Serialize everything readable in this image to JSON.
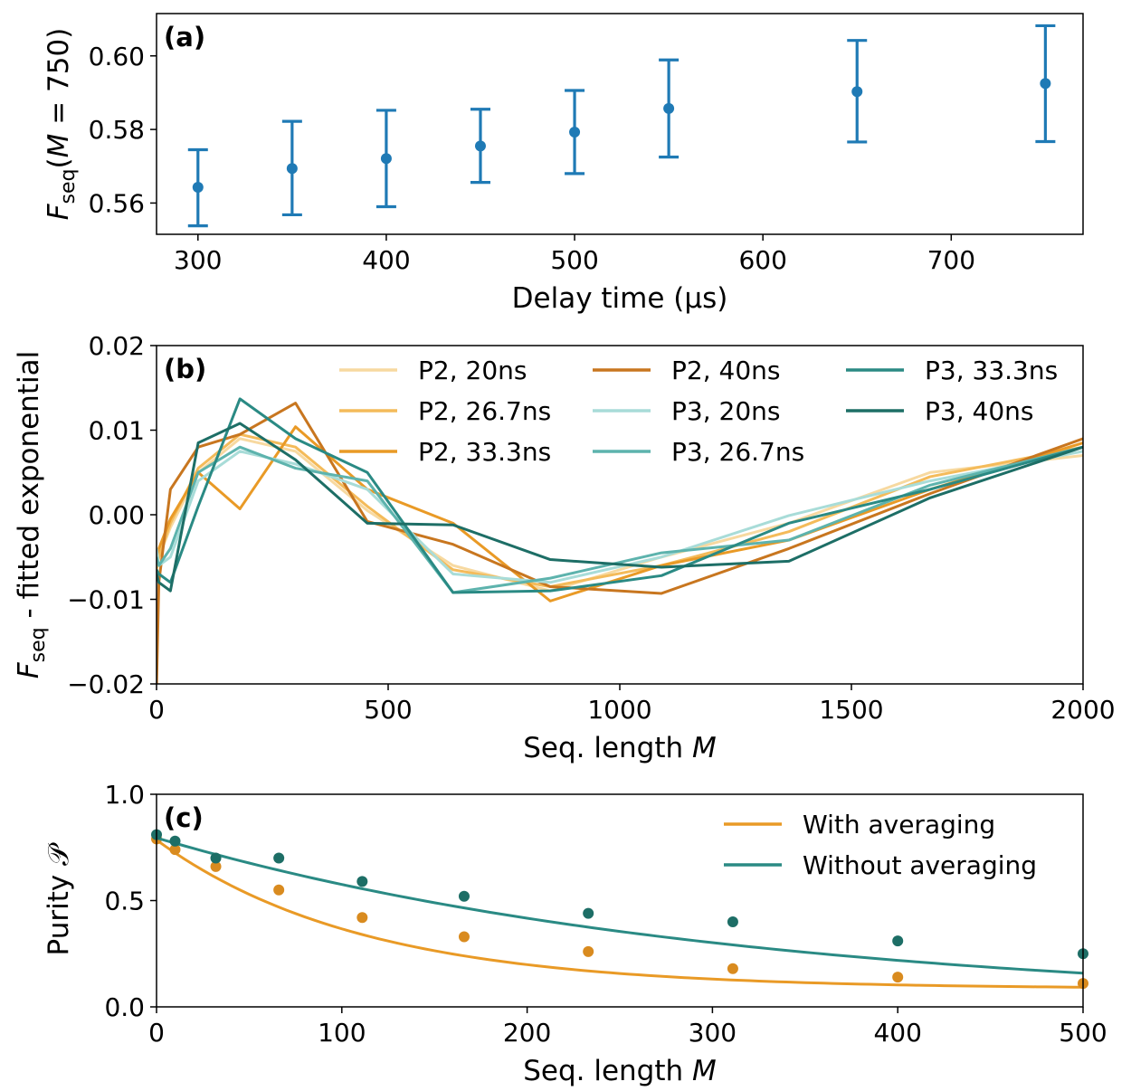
{
  "chart_data": [
    {
      "panel": "(a)",
      "type": "scatter",
      "xlabel": "Delay time (μs)",
      "ylabel": {
        "main": "F",
        "sub": "seq",
        "rest": "(M = 750)"
      },
      "xlim": [
        278,
        770
      ],
      "ylim": [
        0.5515,
        0.6115
      ],
      "xticks": [
        300,
        400,
        500,
        600,
        700
      ],
      "yticks": [
        0.56,
        0.58,
        0.6
      ],
      "ytick_labels": [
        "0.56",
        "0.58",
        "0.60"
      ],
      "color": "#1f7ab5",
      "points": [
        {
          "x": 300,
          "y": 0.5643,
          "lo": 0.5538,
          "hi": 0.5745
        },
        {
          "x": 350,
          "y": 0.5694,
          "lo": 0.5568,
          "hi": 0.5822
        },
        {
          "x": 400,
          "y": 0.5721,
          "lo": 0.559,
          "hi": 0.5852
        },
        {
          "x": 450,
          "y": 0.5755,
          "lo": 0.5656,
          "hi": 0.5855
        },
        {
          "x": 500,
          "y": 0.5793,
          "lo": 0.568,
          "hi": 0.5906
        },
        {
          "x": 550,
          "y": 0.5857,
          "lo": 0.5725,
          "hi": 0.5989
        },
        {
          "x": 650,
          "y": 0.5903,
          "lo": 0.5766,
          "hi": 0.6042
        },
        {
          "x": 750,
          "y": 0.5925,
          "lo": 0.5767,
          "hi": 0.6082
        }
      ]
    },
    {
      "panel": "(b)",
      "type": "line",
      "xlabel": "Seq. length ",
      "xlabel_var": "M",
      "ylabel": {
        "main": "F",
        "sub": "seq",
        "rest": " - fitted exponential"
      },
      "xlim": [
        0,
        2000
      ],
      "ylim": [
        -0.02,
        0.02
      ],
      "xticks": [
        0,
        500,
        1000,
        1500,
        2000
      ],
      "yticks": [
        -0.02,
        -0.01,
        0.0,
        0.01,
        0.02
      ],
      "ytick_labels": [
        "−0.02",
        "−0.01",
        "0.00",
        "0.01",
        "0.02"
      ],
      "x": [
        0,
        5,
        30,
        90,
        180,
        300,
        455,
        640,
        850,
        1090,
        1365,
        1670,
        2000
      ],
      "series": [
        {
          "name": "P2, 20ns",
          "color": "#f7d9a0",
          "values": [
            -0.006,
            -0.005,
            -0.0015,
            0.005,
            0.009,
            0.0075,
            0.0005,
            -0.006,
            -0.009,
            -0.005,
            -0.001,
            0.005,
            0.007
          ]
        },
        {
          "name": "P2, 26.7ns",
          "color": "#f4bb5a",
          "values": [
            -0.0065,
            -0.005,
            -0.001,
            0.0055,
            0.0095,
            0.008,
            0.001,
            -0.0065,
            -0.0085,
            -0.006,
            -0.002,
            0.0045,
            0.008
          ]
        },
        {
          "name": "P2, 33.3ns",
          "color": "#e99a26",
          "values": [
            -0.005,
            -0.004,
            -0.0005,
            0.005,
            0.0007,
            0.0104,
            0.003,
            -0.001,
            -0.0102,
            -0.006,
            -0.003,
            0.003,
            0.0085
          ]
        },
        {
          "name": "P2, 40ns",
          "color": "#c8761f",
          "values": [
            -0.0205,
            -0.008,
            0.003,
            0.008,
            0.0095,
            0.0132,
            -0.0008,
            -0.0035,
            -0.0085,
            -0.0093,
            -0.004,
            0.0025,
            0.009
          ]
        },
        {
          "name": "P3, 20ns",
          "color": "#a8dcd8",
          "values": [
            -0.004,
            -0.006,
            -0.005,
            0.004,
            0.0075,
            0.006,
            0.003,
            -0.007,
            -0.008,
            -0.005,
            -0.0001,
            0.004,
            0.0075
          ]
        },
        {
          "name": "P3, 26.7ns",
          "color": "#5db3ad",
          "values": [
            -0.005,
            -0.006,
            -0.004,
            0.005,
            0.008,
            0.0055,
            0.004,
            -0.0092,
            -0.0075,
            -0.0045,
            -0.003,
            0.0035,
            0.008
          ]
        },
        {
          "name": "P3, 33.3ns",
          "color": "#2a8a84",
          "values": [
            -0.0065,
            -0.007,
            -0.008,
            0.001,
            0.0137,
            0.009,
            0.005,
            -0.0092,
            -0.009,
            -0.0072,
            -0.001,
            0.003,
            0.008
          ]
        },
        {
          "name": "P3, 40ns",
          "color": "#1d6e66",
          "values": [
            -0.007,
            -0.008,
            -0.009,
            0.0085,
            0.0108,
            0.0065,
            -0.001,
            -0.0012,
            -0.0053,
            -0.0062,
            -0.0055,
            0.002,
            0.008
          ]
        }
      ],
      "legend_position": "top"
    },
    {
      "panel": "(c)",
      "type": "scatter",
      "xlabel": "Seq. length ",
      "xlabel_var": "M",
      "ylabel": {
        "main": "Purity ",
        "sub": "",
        "rest": "𝒫"
      },
      "xlim": [
        0,
        500
      ],
      "ylim": [
        0.0,
        1.0
      ],
      "xticks": [
        0,
        100,
        200,
        300,
        400,
        500
      ],
      "yticks": [
        0.0,
        0.5,
        1.0
      ],
      "ytick_labels": [
        "0.0",
        "0.5",
        "1.0"
      ],
      "series": [
        {
          "name": "With averaging",
          "color": "#e99a26",
          "marker_color": "#d98b1f",
          "x": [
            0,
            10,
            32,
            66,
            111,
            166,
            233,
            311,
            400,
            500
          ],
          "values": [
            0.79,
            0.74,
            0.66,
            0.55,
            0.42,
            0.33,
            0.26,
            0.18,
            0.14,
            0.11
          ],
          "fit": {
            "a": 0.7,
            "tau": 110,
            "c": 0.085
          }
        },
        {
          "name": "Without averaging",
          "color": "#2a8a84",
          "marker_color": "#1d6e66",
          "x": [
            0,
            10,
            32,
            66,
            111,
            166,
            233,
            311,
            400,
            500
          ],
          "values": [
            0.81,
            0.78,
            0.7,
            0.7,
            0.59,
            0.52,
            0.44,
            0.4,
            0.31,
            0.25
          ],
          "fit": {
            "a": 0.795,
            "tau": 310,
            "c": 0.0
          }
        }
      ],
      "legend_position": "top-right"
    }
  ]
}
